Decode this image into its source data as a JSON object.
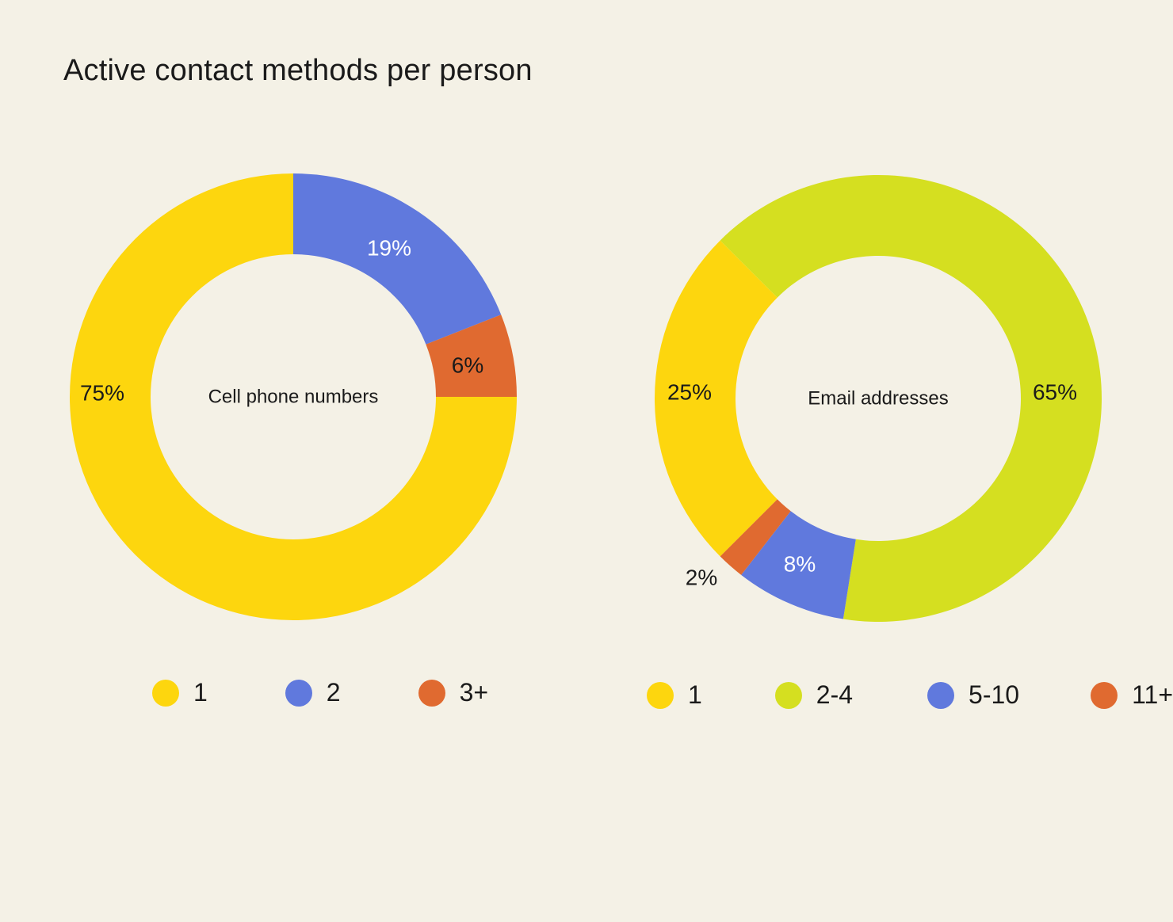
{
  "title": "Active contact methods per person",
  "colors": {
    "background": "#f4f1e6",
    "yellow": "#fdd60e",
    "blue": "#6079dd",
    "orange": "#e06a30",
    "lime": "#d5df20"
  },
  "chart_data": [
    {
      "type": "pie",
      "variant": "donut",
      "center_label": "Cell phone numbers",
      "categories": [
        "1",
        "2",
        "3+"
      ],
      "values": [
        75,
        19,
        6
      ],
      "labels": [
        "75%",
        "19%",
        "6%"
      ],
      "colors": [
        "#fdd60e",
        "#6079dd",
        "#e06a30"
      ],
      "label_colors": [
        "#1a1a1a",
        "#ffffff",
        "#1a1a1a"
      ],
      "legend_placement": "bottom"
    },
    {
      "type": "pie",
      "variant": "donut",
      "center_label": "Email addresses",
      "categories": [
        "1",
        "2-4",
        "5-10",
        "11+"
      ],
      "values": [
        25,
        65,
        8,
        2
      ],
      "labels": [
        "25%",
        "65%",
        "8%",
        "2%"
      ],
      "colors": [
        "#fdd60e",
        "#d5df20",
        "#6079dd",
        "#e06a30"
      ],
      "label_colors": [
        "#1a1a1a",
        "#1a1a1a",
        "#ffffff",
        "#1a1a1a"
      ],
      "legend_placement": "bottom"
    }
  ]
}
